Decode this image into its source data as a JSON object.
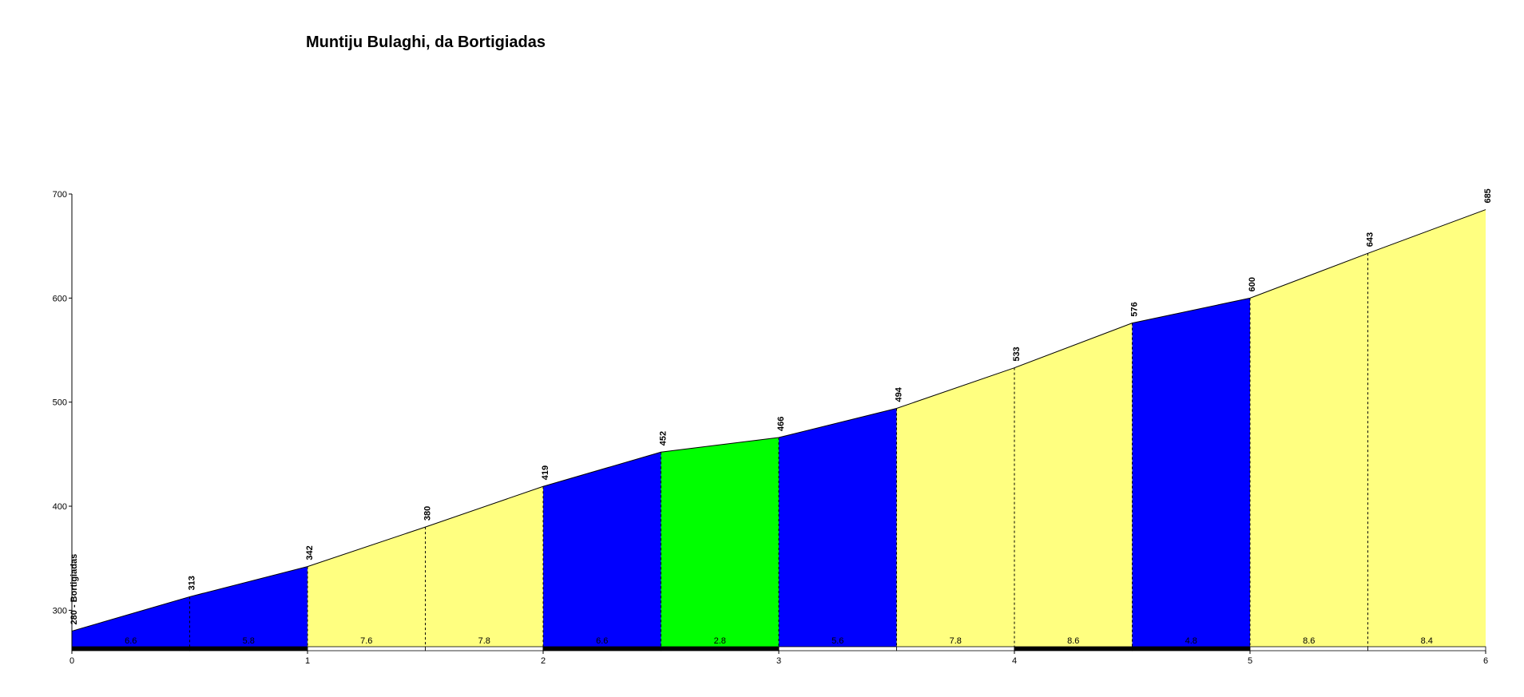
{
  "chart_data": {
    "type": "area",
    "title": "Muntiju Bulaghi, da Bortigiadas",
    "xlabel": "",
    "ylabel": "",
    "xlim": [
      0,
      6
    ],
    "ylim": [
      265,
      700
    ],
    "x_ticks": [
      "0",
      "1",
      "2",
      "3",
      "4",
      "5",
      "6"
    ],
    "y_ticks": [
      "300",
      "400",
      "500",
      "600",
      "700"
    ],
    "profile": [
      {
        "x": 0,
        "elevation": 280,
        "label": "280 - Bortigiadas"
      },
      {
        "x": 0.5,
        "elevation": 313,
        "label": "313"
      },
      {
        "x": 1,
        "elevation": 342,
        "label": "342"
      },
      {
        "x": 1.5,
        "elevation": 380,
        "label": "380"
      },
      {
        "x": 2,
        "elevation": 419,
        "label": "419"
      },
      {
        "x": 2.5,
        "elevation": 452,
        "label": "452"
      },
      {
        "x": 3,
        "elevation": 466,
        "label": "466"
      },
      {
        "x": 3.5,
        "elevation": 494,
        "label": "494"
      },
      {
        "x": 4,
        "elevation": 533,
        "label": "533"
      },
      {
        "x": 4.5,
        "elevation": 576,
        "label": "576"
      },
      {
        "x": 5,
        "elevation": 600,
        "label": "600"
      },
      {
        "x": 5.5,
        "elevation": 643,
        "label": "643"
      },
      {
        "x": 6,
        "elevation": 685,
        "label": "685"
      }
    ],
    "segments": [
      {
        "from": 0,
        "to": 0.5,
        "gradient": "6.6",
        "color": "#0000ff",
        "bar_color": "#000000"
      },
      {
        "from": 0.5,
        "to": 1,
        "gradient": "5.8",
        "color": "#0000ff",
        "bar_color": "#000000"
      },
      {
        "from": 1,
        "to": 1.5,
        "gradient": "7.6",
        "color": "#ffff80",
        "bar_color": "#ffffff"
      },
      {
        "from": 1.5,
        "to": 2,
        "gradient": "7.8",
        "color": "#ffff80",
        "bar_color": "#ffffff"
      },
      {
        "from": 2,
        "to": 2.5,
        "gradient": "6.6",
        "color": "#0000ff",
        "bar_color": "#000000"
      },
      {
        "from": 2.5,
        "to": 3,
        "gradient": "2.8",
        "color": "#00ff00",
        "bar_color": "#000000"
      },
      {
        "from": 3,
        "to": 3.5,
        "gradient": "5.6",
        "color": "#0000ff",
        "bar_color": "#ffffff"
      },
      {
        "from": 3.5,
        "to": 4,
        "gradient": "7.8",
        "color": "#ffff80",
        "bar_color": "#ffffff"
      },
      {
        "from": 4,
        "to": 4.5,
        "gradient": "8.6",
        "color": "#ffff80",
        "bar_color": "#000000"
      },
      {
        "from": 4.5,
        "to": 5,
        "gradient": "4.8",
        "color": "#0000ff",
        "bar_color": "#000000"
      },
      {
        "from": 5,
        "to": 5.5,
        "gradient": "8.6",
        "color": "#ffff80",
        "bar_color": "#ffffff"
      },
      {
        "from": 5.5,
        "to": 6,
        "gradient": "8.4",
        "color": "#ffff80",
        "bar_color": "#ffffff"
      }
    ],
    "grid": false,
    "legend": "none"
  }
}
